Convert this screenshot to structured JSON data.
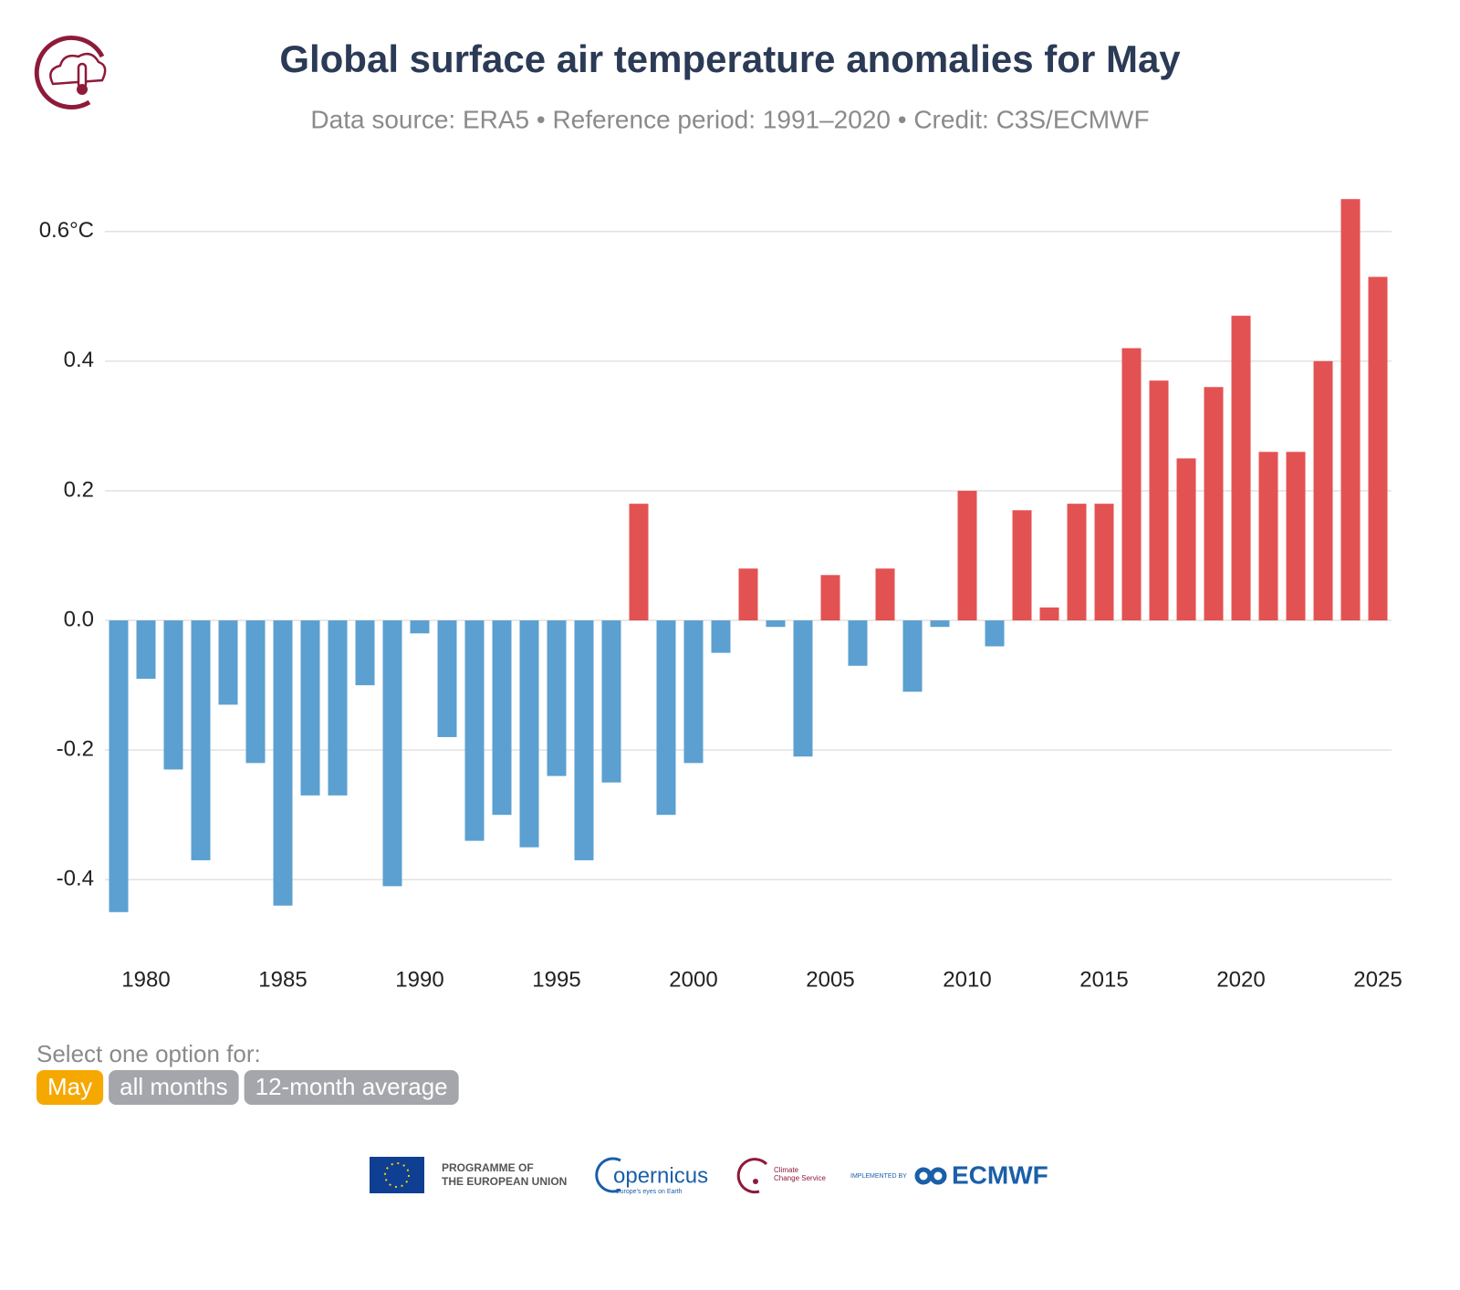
{
  "header": {
    "title": "Global surface air temperature anomalies for May",
    "subtitle": "Data source: ERA5 • Reference period: 1991–2020 • Credit: C3S/ECMWF"
  },
  "chart_data": {
    "type": "bar",
    "x": [
      1979,
      1980,
      1981,
      1982,
      1983,
      1984,
      1985,
      1986,
      1987,
      1988,
      1989,
      1990,
      1991,
      1992,
      1993,
      1994,
      1995,
      1996,
      1997,
      1998,
      1999,
      2000,
      2001,
      2002,
      2003,
      2004,
      2005,
      2006,
      2007,
      2008,
      2009,
      2010,
      2011,
      2012,
      2013,
      2014,
      2015,
      2016,
      2017,
      2018,
      2019,
      2020,
      2021,
      2022,
      2023,
      2024,
      2025
    ],
    "values": [
      -0.45,
      -0.09,
      -0.23,
      -0.37,
      -0.13,
      -0.22,
      -0.44,
      -0.27,
      -0.27,
      -0.1,
      -0.41,
      -0.02,
      -0.18,
      -0.34,
      -0.3,
      -0.35,
      -0.24,
      -0.37,
      -0.25,
      0.18,
      -0.3,
      -0.22,
      -0.05,
      0.08,
      -0.01,
      -0.21,
      0.07,
      -0.07,
      0.08,
      -0.11,
      -0.01,
      0.2,
      -0.04,
      0.17,
      0.02,
      0.18,
      0.18,
      0.42,
      0.37,
      0.25,
      0.36,
      0.47,
      0.26,
      0.26,
      0.4,
      0.65,
      0.53
    ],
    "positive_color": "#e35252",
    "negative_color": "#5ba0d0",
    "ylim": [
      -0.47,
      0.67
    ],
    "yticks": [
      {
        "value": 0.6,
        "label": "0.6°C"
      },
      0.4,
      0.2,
      {
        "value": 0,
        "label": "0.0"
      },
      -0.2,
      -0.4
    ],
    "xlim": [
      1978.5,
      2025.5
    ],
    "xticks": [
      1980,
      1985,
      1990,
      1995,
      2000,
      2005,
      2010,
      2015,
      2020,
      2025
    ],
    "grid": true
  },
  "controls": {
    "label": "Select one option for:",
    "options": [
      "May",
      "all months",
      "12-month average"
    ],
    "selected": 0,
    "selected_color": "#f5a800",
    "other_color": "#a4a6ab"
  },
  "footer": {
    "eu": [
      "PROGRAMME OF",
      "THE EUROPEAN UNION"
    ],
    "copernicus": "opernicus",
    "copernicus_tagline": "Europe's eyes on Earth",
    "c3s": [
      "Climate",
      "Change Service"
    ],
    "implemented": "IMPLEMENTED BY",
    "ecmwf": "ECMWF"
  }
}
